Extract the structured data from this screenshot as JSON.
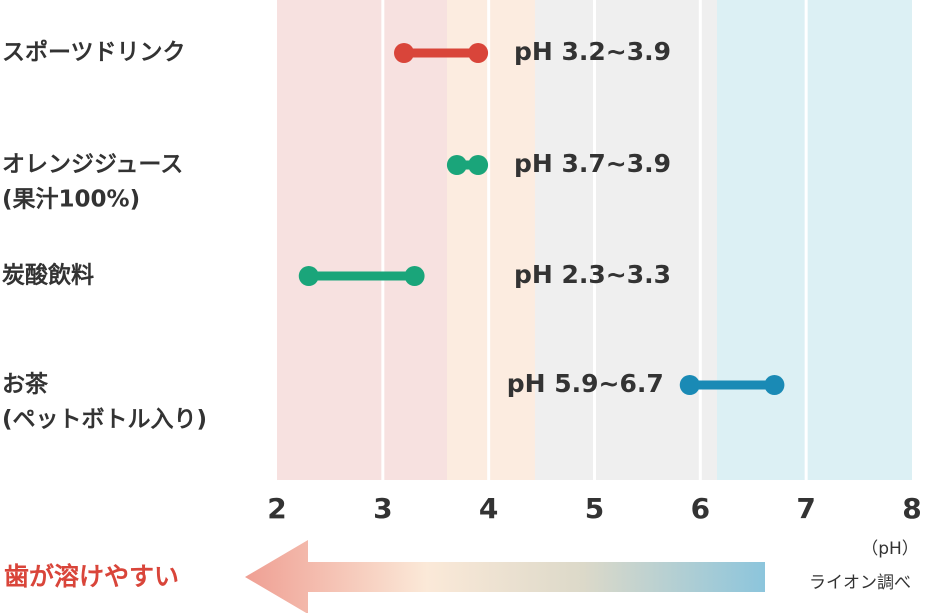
{
  "chart_data": {
    "type": "range",
    "categories": [
      "スポーツドリンク",
      "オレンジジュース",
      "炭酸飲料",
      "お茶"
    ],
    "category_notes": [
      null,
      "(果汁100%)",
      null,
      "(ペットボトル入り)"
    ],
    "low": [
      3.2,
      3.7,
      2.3,
      5.9
    ],
    "high": [
      3.9,
      3.9,
      3.3,
      6.7
    ],
    "value_labels": [
      "pH 3.2~3.9",
      "pH 3.7~3.9",
      "pH 2.3~3.3",
      "pH 5.9~6.7"
    ],
    "colors": [
      "#d9453a",
      "#1aa57a",
      "#1aa57a",
      "#1a8ab5"
    ],
    "xlim": [
      2,
      8
    ],
    "xticks": [
      2,
      3,
      4,
      5,
      6,
      7,
      8
    ],
    "grid": true,
    "xlabel": "（pH）",
    "arrow_label": "歯が溶けやすい",
    "source": "ライオン調べ"
  }
}
